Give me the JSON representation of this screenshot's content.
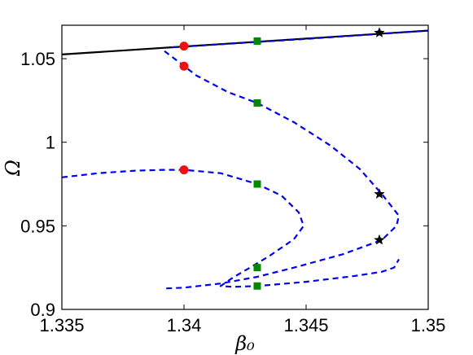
{
  "chart_data": {
    "type": "line",
    "xlabel": "β₀",
    "ylabel": "Ω",
    "xlim": [
      1.335,
      1.35
    ],
    "ylim": [
      0.9,
      1.07
    ],
    "xticks": [
      1.335,
      1.34,
      1.345,
      1.35
    ],
    "xtick_labels": [
      "1.335",
      "1.34",
      "1.345",
      "1.35"
    ],
    "yticks": [
      0.9,
      0.95,
      1.0,
      1.05
    ],
    "ytick_labels": [
      "0.9",
      "0.95",
      "1",
      "1.05"
    ],
    "grid": false,
    "series": [
      {
        "style": "solid",
        "color": "#000000",
        "points": [
          [
            1.335,
            1.0525
          ],
          [
            1.35,
            1.0668
          ]
        ]
      },
      {
        "style": "dashed",
        "color": "#0000ee",
        "points": [
          [
            1.3395,
            1.0568
          ],
          [
            1.345,
            1.0618
          ],
          [
            1.35,
            1.0668
          ]
        ]
      },
      {
        "style": "dashed",
        "color": "#0000ee",
        "points": [
          [
            1.3392,
            1.0545
          ],
          [
            1.3397,
            1.049
          ],
          [
            1.3405,
            1.04
          ],
          [
            1.3418,
            1.03
          ],
          [
            1.343,
            1.0235
          ],
          [
            1.3445,
            1.012
          ],
          [
            1.346,
            0.998
          ],
          [
            1.3472,
            0.984
          ],
          [
            1.3481,
            0.969
          ],
          [
            1.3488,
            0.956
          ],
          [
            1.3487,
            0.95
          ],
          [
            1.3481,
            0.9415
          ],
          [
            1.3465,
            0.933
          ],
          [
            1.3445,
            0.925
          ],
          [
            1.343,
            0.9195
          ],
          [
            1.3415,
            0.9155
          ],
          [
            1.34,
            0.913
          ],
          [
            1.3392,
            0.9125
          ]
        ]
      },
      {
        "style": "dashed",
        "color": "#0000ee",
        "points": [
          [
            1.335,
            0.979
          ],
          [
            1.3365,
            0.9815
          ],
          [
            1.338,
            0.983
          ],
          [
            1.3392,
            0.9835
          ],
          [
            1.34,
            0.9835
          ],
          [
            1.3415,
            0.9815
          ],
          [
            1.343,
            0.975
          ],
          [
            1.344,
            0.968
          ],
          [
            1.3447,
            0.958
          ],
          [
            1.3449,
            0.95
          ],
          [
            1.3445,
            0.942
          ],
          [
            1.3435,
            0.932
          ],
          [
            1.3427,
            0.925
          ],
          [
            1.342,
            0.919
          ],
          [
            1.3415,
            0.914
          ],
          [
            1.342,
            0.9135
          ],
          [
            1.343,
            0.914
          ],
          [
            1.345,
            0.9165
          ],
          [
            1.347,
            0.92
          ],
          [
            1.3481,
            0.9225
          ],
          [
            1.3486,
            0.925
          ],
          [
            1.3488,
            0.93
          ]
        ]
      }
    ],
    "markers": {
      "circles": {
        "color": "#ee1111",
        "points": [
          [
            1.34,
            1.0575
          ],
          [
            1.34,
            1.0455
          ],
          [
            1.34,
            0.9835
          ]
        ]
      },
      "squares": {
        "color": "#008800",
        "points": [
          [
            1.343,
            1.0605
          ],
          [
            1.343,
            1.0235
          ],
          [
            1.343,
            0.975
          ],
          [
            1.343,
            0.925
          ],
          [
            1.343,
            0.914
          ]
        ]
      },
      "stars": {
        "color": "#000000",
        "points": [
          [
            1.348,
            1.0655
          ],
          [
            1.348,
            0.969
          ],
          [
            1.348,
            0.9415
          ]
        ]
      }
    }
  }
}
